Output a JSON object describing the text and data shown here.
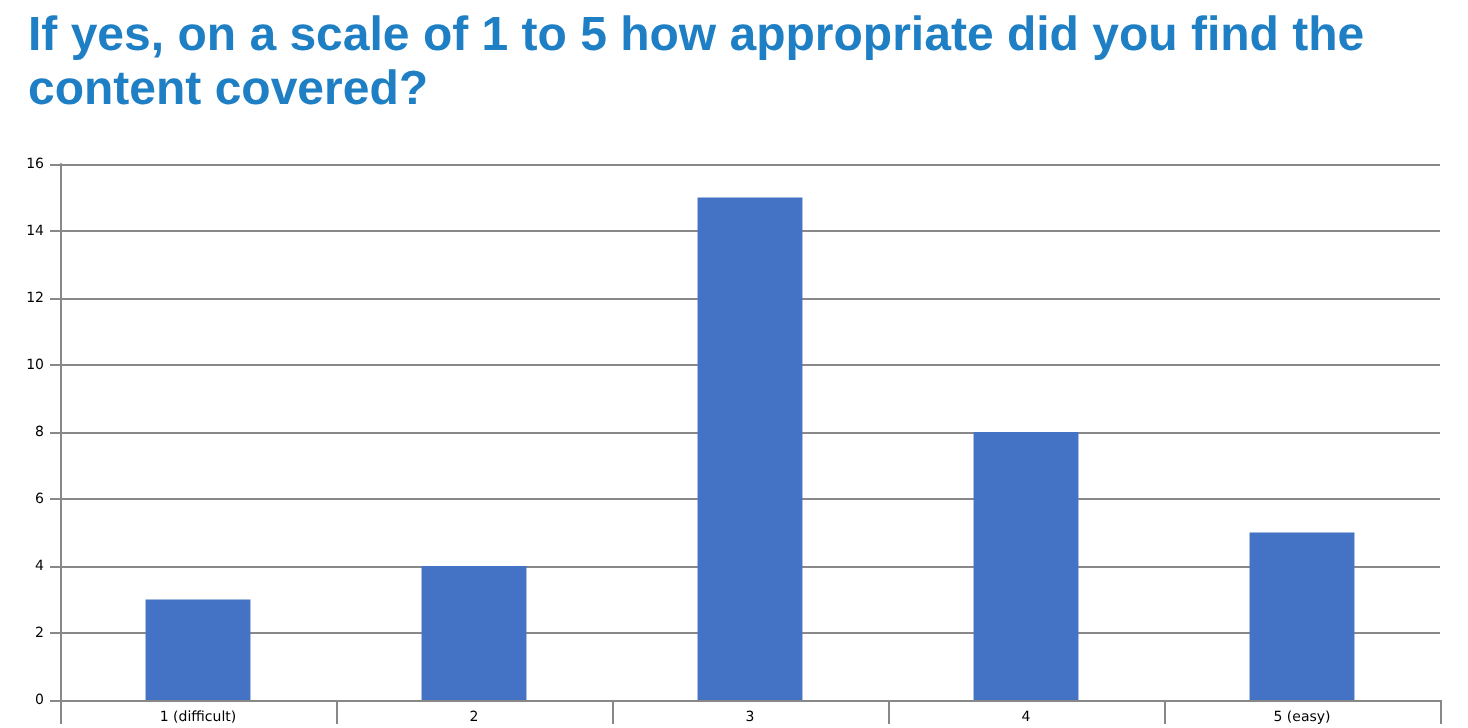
{
  "chart_data": {
    "type": "bar",
    "title": "If yes, on a scale of 1 to 5 how appropriate did you find the content covered?",
    "categories": [
      "1 (difficult)",
      "2",
      "3",
      "4",
      "5 (easy)"
    ],
    "values": [
      3,
      4,
      15,
      8,
      5
    ],
    "color": "#4472c4",
    "ylim": [
      0,
      16
    ],
    "yticks": [
      0,
      2,
      4,
      6,
      8,
      10,
      12,
      14,
      16
    ],
    "grid": "y"
  }
}
